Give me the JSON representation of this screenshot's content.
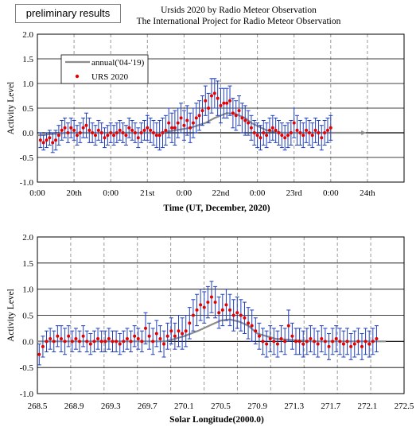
{
  "badge": "preliminary results",
  "title_line1": "Ursids 2020 by Radio Meteor Observation",
  "title_line2": "The International Project for Radio Meteor Observation",
  "colors": {
    "urs": "#e60000",
    "annual": "#8c8c8c",
    "errorbar": "#1f3fbf",
    "grid_dash": "#9a9a9a"
  },
  "chart_data": [
    {
      "type": "scatter",
      "xlabel": "Time (UT, December, 2020)",
      "ylabel": "Activity Level",
      "ylim": [
        -1.0,
        2.0
      ],
      "yticks": [
        "2.0",
        "1.5",
        "1.0",
        "0.5",
        "0.0",
        "-0.5",
        "-1.0"
      ],
      "xticks": [
        "0:00",
        "20th",
        "0:00",
        "21st",
        "0:00",
        "22nd",
        "0:00",
        "23rd",
        "0:00",
        "24th"
      ],
      "x_unit": "hours from 2020-12-19 12:00 UT",
      "xlim": [
        0,
        120
      ],
      "legend": {
        "position": "top-left",
        "entries": [
          "annual('04-'19)",
          "URS 2020"
        ]
      },
      "series": [
        {
          "name": "URS 2020",
          "kind": "points",
          "x": [
            1,
            2,
            3,
            4,
            5,
            6,
            7,
            8,
            9,
            10,
            11,
            12,
            13,
            14,
            15,
            16,
            17,
            18,
            19,
            20,
            21,
            22,
            23,
            24,
            25,
            26,
            27,
            28,
            29,
            30,
            31,
            32,
            33,
            34,
            35,
            36,
            37,
            38,
            39,
            40,
            41,
            42,
            43,
            44,
            45,
            46,
            47,
            48,
            49,
            50,
            51,
            52,
            53,
            54,
            55,
            56,
            57,
            58,
            59,
            60,
            61,
            62,
            63,
            64,
            65,
            66,
            67,
            68,
            69,
            70,
            71,
            72,
            73,
            74,
            75,
            76,
            77,
            78,
            79,
            80,
            81,
            82,
            83,
            84,
            85,
            86,
            87,
            88,
            89,
            90,
            91,
            92,
            93,
            94,
            95,
            96
          ],
          "y": [
            -0.15,
            -0.2,
            -0.15,
            -0.1,
            -0.2,
            -0.15,
            -0.05,
            0.05,
            0.1,
            0.0,
            0.1,
            0.05,
            -0.05,
            0.0,
            0.1,
            0.15,
            0.05,
            0.0,
            -0.05,
            0.05,
            0.0,
            -0.1,
            -0.05,
            0.0,
            -0.05,
            0.0,
            0.05,
            0.0,
            -0.05,
            0.1,
            0.05,
            0.0,
            -0.1,
            0.0,
            0.05,
            0.1,
            0.05,
            0.0,
            -0.05,
            -0.05,
            0.0,
            0.05,
            0.2,
            0.1,
            0.1,
            0.2,
            0.3,
            0.15,
            0.25,
            0.1,
            0.2,
            0.3,
            0.35,
            0.45,
            0.65,
            0.5,
            0.75,
            0.8,
            0.7,
            0.55,
            0.6,
            0.6,
            0.65,
            0.4,
            0.35,
            0.45,
            0.3,
            0.25,
            0.2,
            0.1,
            0.0,
            -0.05,
            -0.1,
            0.0,
            -0.05,
            0.05,
            0.1,
            0.05,
            0.0,
            -0.05,
            -0.1,
            -0.05,
            0.0,
            0.2,
            0.05,
            0.0,
            -0.05,
            0.05,
            0.0,
            -0.05,
            0.05,
            0.0,
            -0.1,
            0.0,
            0.05,
            0.1
          ],
          "err": [
            0.15,
            0.15,
            0.15,
            0.15,
            0.2,
            0.2,
            0.2,
            0.2,
            0.2,
            0.2,
            0.2,
            0.2,
            0.2,
            0.2,
            0.2,
            0.25,
            0.25,
            0.2,
            0.2,
            0.2,
            0.2,
            0.2,
            0.2,
            0.2,
            0.2,
            0.2,
            0.2,
            0.2,
            0.2,
            0.2,
            0.2,
            0.2,
            0.2,
            0.2,
            0.2,
            0.25,
            0.25,
            0.25,
            0.25,
            0.3,
            0.3,
            0.3,
            0.3,
            0.3,
            0.35,
            0.3,
            0.3,
            0.3,
            0.3,
            0.3,
            0.3,
            0.3,
            0.3,
            0.3,
            0.3,
            0.3,
            0.35,
            0.3,
            0.35,
            0.35,
            0.3,
            0.3,
            0.3,
            0.3,
            0.3,
            0.3,
            0.3,
            0.3,
            0.25,
            0.25,
            0.25,
            0.25,
            0.25,
            0.25,
            0.25,
            0.25,
            0.25,
            0.25,
            0.25,
            0.25,
            0.25,
            0.25,
            0.25,
            0.3,
            0.3,
            0.25,
            0.25,
            0.25,
            0.25,
            0.25,
            0.25,
            0.25,
            0.25,
            0.25,
            0.25,
            0.25
          ]
        },
        {
          "name": "annual('04-'19)",
          "kind": "line",
          "x": [
            0,
            10,
            20,
            30,
            40,
            45,
            50,
            55,
            58,
            60,
            62,
            65,
            68,
            70,
            75,
            80,
            90,
            100,
            106
          ],
          "y": [
            -0.05,
            0.0,
            0.0,
            0.0,
            0.0,
            0.05,
            0.1,
            0.2,
            0.3,
            0.35,
            0.4,
            0.38,
            0.3,
            0.2,
            0.05,
            0.0,
            0.0,
            0.0,
            0.0
          ]
        }
      ]
    },
    {
      "type": "scatter",
      "xlabel": "Solar Longitude(2000.0)",
      "ylabel": "Activity Level",
      "ylim": [
        -1.0,
        2.0
      ],
      "yticks": [
        "2.0",
        "1.5",
        "1.0",
        "0.5",
        "0.0",
        "-0.5",
        "-1.0"
      ],
      "xticks": [
        "268.5",
        "268.9",
        "269.3",
        "269.7",
        "270.1",
        "270.5",
        "270.9",
        "271.3",
        "271.7",
        "272.1",
        "272.5"
      ],
      "xlim": [
        268.5,
        272.5
      ],
      "series": [
        {
          "name": "URS 2020",
          "kind": "points",
          "x": [
            268.52,
            268.56,
            268.6,
            268.64,
            268.68,
            268.72,
            268.76,
            268.8,
            268.84,
            268.88,
            268.92,
            268.96,
            269.0,
            269.04,
            269.08,
            269.12,
            269.16,
            269.2,
            269.24,
            269.28,
            269.32,
            269.36,
            269.4,
            269.44,
            269.48,
            269.52,
            269.56,
            269.6,
            269.64,
            269.68,
            269.72,
            269.76,
            269.8,
            269.84,
            269.88,
            269.92,
            269.96,
            270.0,
            270.04,
            270.08,
            270.12,
            270.16,
            270.2,
            270.24,
            270.28,
            270.32,
            270.36,
            270.4,
            270.44,
            270.48,
            270.52,
            270.56,
            270.6,
            270.64,
            270.68,
            270.72,
            270.76,
            270.8,
            270.84,
            270.88,
            270.92,
            270.96,
            271.0,
            271.04,
            271.08,
            271.12,
            271.16,
            271.2,
            271.24,
            271.28,
            271.32,
            271.36,
            271.4,
            271.44,
            271.48,
            271.52,
            271.56,
            271.6,
            271.64,
            271.68,
            271.72,
            271.76,
            271.8,
            271.84,
            271.88,
            271.92,
            271.96,
            272.0,
            272.04,
            272.08,
            272.12,
            272.16,
            272.2
          ],
          "y": [
            -0.25,
            -0.1,
            0.0,
            0.05,
            0.0,
            0.1,
            0.05,
            0.0,
            0.1,
            0.0,
            0.05,
            0.0,
            0.1,
            0.0,
            -0.05,
            0.0,
            0.05,
            0.0,
            0.0,
            0.05,
            0.0,
            0.0,
            -0.05,
            0.0,
            0.05,
            0.0,
            0.1,
            0.05,
            0.0,
            0.25,
            0.1,
            0.0,
            0.15,
            0.05,
            -0.05,
            0.1,
            0.2,
            0.1,
            0.2,
            0.15,
            0.2,
            0.35,
            0.5,
            0.6,
            0.7,
            0.65,
            0.75,
            0.85,
            0.75,
            0.55,
            0.6,
            0.7,
            0.6,
            0.5,
            0.55,
            0.5,
            0.45,
            0.35,
            0.3,
            0.2,
            0.1,
            0.0,
            -0.05,
            0.05,
            0.0,
            -0.05,
            0.05,
            0.0,
            0.3,
            0.1,
            0.0,
            0.0,
            -0.05,
            0.0,
            0.05,
            0.0,
            -0.05,
            0.05,
            0.0,
            -0.1,
            0.0,
            0.05,
            0.0,
            -0.05,
            0.0,
            -0.1,
            -0.05,
            0.0,
            -0.1,
            0.0,
            -0.05,
            0.0,
            0.05
          ],
          "err": [
            0.2,
            0.2,
            0.2,
            0.2,
            0.2,
            0.2,
            0.25,
            0.25,
            0.2,
            0.2,
            0.2,
            0.2,
            0.2,
            0.2,
            0.2,
            0.2,
            0.2,
            0.2,
            0.2,
            0.2,
            0.2,
            0.2,
            0.2,
            0.2,
            0.2,
            0.2,
            0.2,
            0.2,
            0.2,
            0.3,
            0.25,
            0.25,
            0.25,
            0.25,
            0.25,
            0.25,
            0.25,
            0.25,
            0.3,
            0.3,
            0.3,
            0.3,
            0.3,
            0.3,
            0.3,
            0.3,
            0.3,
            0.3,
            0.3,
            0.3,
            0.3,
            0.3,
            0.3,
            0.3,
            0.3,
            0.3,
            0.3,
            0.3,
            0.3,
            0.25,
            0.25,
            0.25,
            0.25,
            0.25,
            0.25,
            0.25,
            0.25,
            0.25,
            0.3,
            0.25,
            0.25,
            0.25,
            0.25,
            0.25,
            0.25,
            0.25,
            0.25,
            0.25,
            0.25,
            0.25,
            0.25,
            0.25,
            0.25,
            0.25,
            0.25,
            0.25,
            0.25,
            0.25,
            0.25,
            0.25,
            0.25,
            0.25,
            0.25
          ]
        },
        {
          "name": "annual('04-'19)",
          "kind": "line",
          "x": [
            268.5,
            269.0,
            269.5,
            269.9,
            270.1,
            270.25,
            270.4,
            270.5,
            270.6,
            270.7,
            270.8,
            270.9,
            271.1,
            271.5,
            272.0,
            272.3
          ],
          "y": [
            0.0,
            0.0,
            0.0,
            0.0,
            0.1,
            0.2,
            0.32,
            0.4,
            0.42,
            0.38,
            0.3,
            0.15,
            0.05,
            0.0,
            0.0,
            0.0
          ]
        }
      ]
    }
  ]
}
